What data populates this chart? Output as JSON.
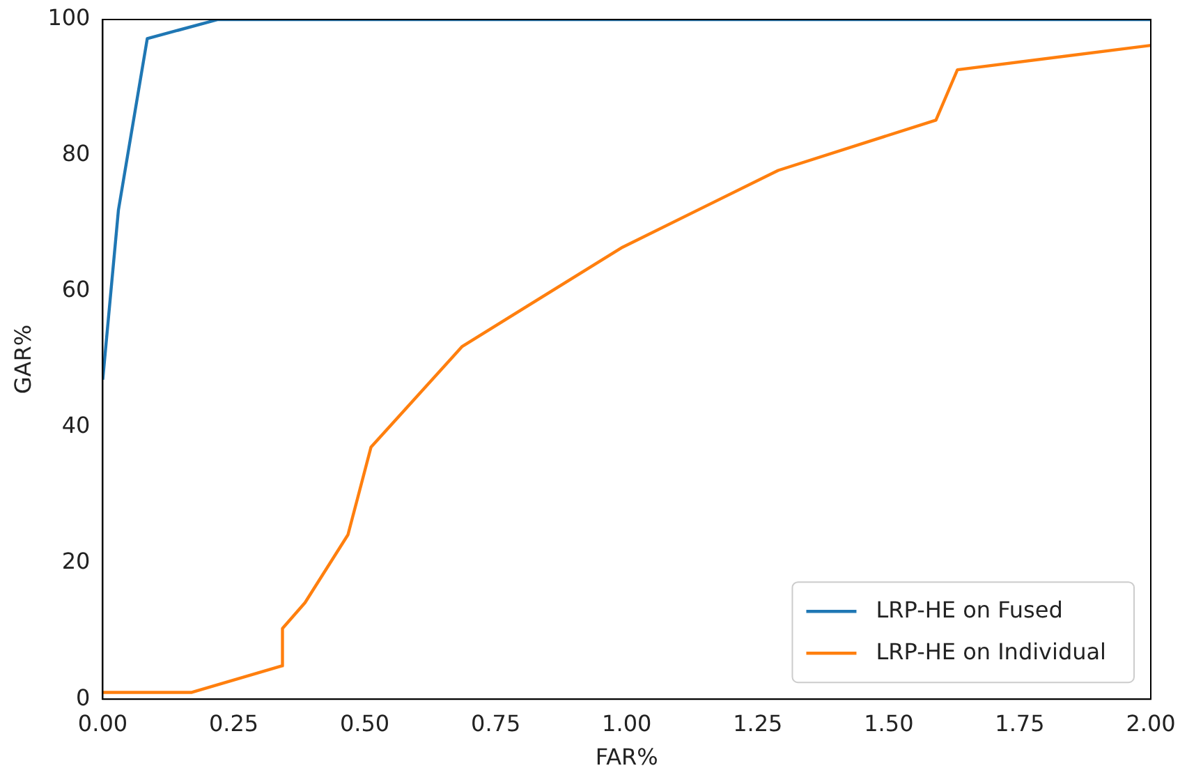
{
  "chart_data": {
    "type": "line",
    "xlabel": "FAR%",
    "ylabel": "GAR%",
    "xlim": [
      0,
      2
    ],
    "ylim": [
      0,
      100
    ],
    "xticks": [
      {
        "value": 0,
        "label": "0.00"
      },
      {
        "value": 0.25,
        "label": "0.25"
      },
      {
        "value": 0.5,
        "label": "0.50"
      },
      {
        "value": 0.75,
        "label": "0.75"
      },
      {
        "value": 1,
        "label": "1.00"
      },
      {
        "value": 1.25,
        "label": "1.25"
      },
      {
        "value": 1.5,
        "label": "1.50"
      },
      {
        "value": 1.75,
        "label": "1.75"
      },
      {
        "value": 2,
        "label": "2.00"
      }
    ],
    "yticks": [
      0,
      20,
      40,
      60,
      80,
      100
    ],
    "grid": false,
    "legend": "bottom right",
    "marker": "none",
    "line_style": "solid",
    "series": [
      {
        "name": "LRP-HE on Fused",
        "color": "#1f77b4",
        "x": [
          0,
          0.03,
          0.085,
          0.22,
          2
        ],
        "values": [
          47,
          72,
          97.2,
          100,
          100
        ]
      },
      {
        "name": "LRP-HE on Individual",
        "color": "#ff7f0e",
        "x": [
          0,
          0.17,
          0.342,
          0.343,
          0.386,
          0.468,
          0.512,
          0.686,
          0.992,
          1.289,
          1.59,
          1.631,
          2
        ],
        "values": [
          1,
          1,
          4.9,
          10.4,
          14.2,
          24.2,
          37.1,
          51.9,
          66.5,
          77.8,
          85.2,
          92.6,
          96.2
        ]
      }
    ]
  }
}
